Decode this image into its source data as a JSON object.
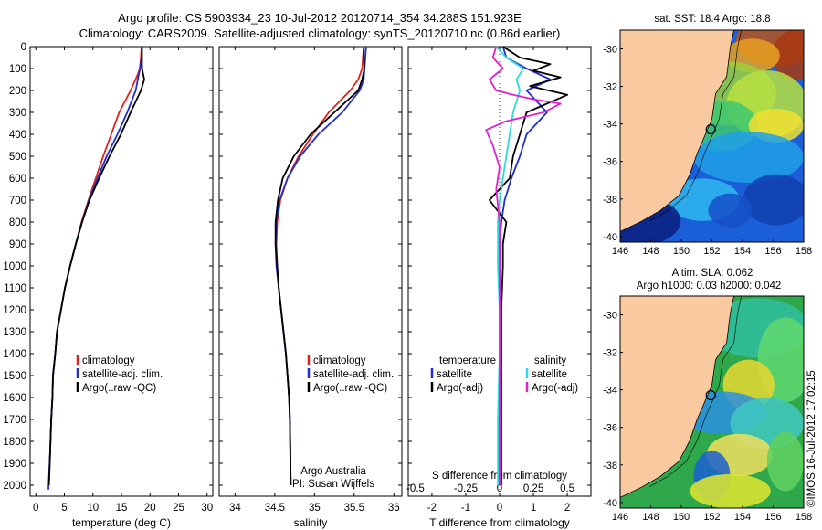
{
  "title_line1": "Argo profile: CS 5903934_23 10-Jul-2012 20120714_354 34.288S 151.923E",
  "title_line2": "Climatology: CARS2009. Satellite-adjusted climatology: synTS_20120710.nc (0.86d earlier)",
  "stamp": "©IMOS 16-Jul-2012 17:02:15",
  "colors": {
    "climatology": "#e0201a",
    "satellite": "#1f2fd0",
    "argo": "#000000",
    "sal_satellite": "#30d8e0",
    "sal_argo": "#e020d0",
    "land": "#f9c9a0"
  },
  "chart_data": [
    {
      "type": "line",
      "xlabel": "temperature (deg C)",
      "xlim": [
        -1,
        31
      ],
      "xticks": [
        0,
        5,
        10,
        15,
        20,
        25,
        30
      ],
      "ylim": [
        0,
        2050
      ],
      "yticks": [
        0,
        100,
        200,
        300,
        400,
        500,
        600,
        700,
        800,
        900,
        1000,
        1100,
        1200,
        1300,
        1400,
        1500,
        1600,
        1700,
        1800,
        1900,
        2000
      ],
      "legend": [
        "climatology",
        "satellite-adj. clim.",
        "Argo(..raw -QC)"
      ],
      "series": [
        {
          "name": "climatology",
          "color": "#e0201a",
          "x": [
            18.5,
            18.4,
            18.2,
            17.8,
            16.6,
            14.6,
            13.2,
            11.8,
            10.5,
            9.2,
            8.0,
            7.0,
            6.0,
            5.1,
            4.4,
            3.7,
            3.4,
            3.0,
            2.9,
            2.7,
            2.5,
            2.3
          ],
          "y": [
            0,
            50,
            100,
            130,
            200,
            300,
            400,
            500,
            600,
            700,
            800,
            900,
            1000,
            1100,
            1200,
            1300,
            1400,
            1500,
            1600,
            1700,
            1850,
            2000
          ]
        },
        {
          "name": "satellite-adj. clim.",
          "color": "#1f2fd0",
          "x": [
            18.6,
            18.5,
            18.3,
            18.0,
            17.5,
            16.0,
            14.3,
            12.4,
            10.8,
            9.3,
            8.1,
            7.0,
            6.0,
            5.1,
            4.4,
            3.7,
            3.4,
            3.0,
            2.9,
            2.7,
            2.5,
            2.2
          ],
          "y": [
            0,
            50,
            100,
            130,
            200,
            300,
            400,
            500,
            600,
            700,
            800,
            900,
            1000,
            1100,
            1200,
            1300,
            1400,
            1500,
            1600,
            1700,
            1850,
            2020
          ]
        },
        {
          "name": "Argo(..raw -QC)",
          "color": "#000000",
          "x": [
            18.6,
            18.6,
            18.6,
            19.0,
            18.4,
            16.6,
            14.9,
            12.9,
            11.1,
            9.4,
            8.1,
            7.0,
            6.0,
            5.1,
            4.4,
            3.7,
            3.4,
            3.0,
            2.9,
            2.7,
            2.5,
            2.3
          ],
          "y": [
            10,
            50,
            100,
            150,
            200,
            300,
            400,
            500,
            600,
            700,
            800,
            900,
            1000,
            1100,
            1200,
            1300,
            1400,
            1500,
            1600,
            1700,
            1850,
            2000
          ]
        }
      ]
    },
    {
      "type": "line",
      "xlabel": "salinity",
      "xlim": [
        33.8,
        36.1
      ],
      "xticks": [
        34,
        34.5,
        35,
        35.5,
        36
      ],
      "ylim": [
        0,
        2050
      ],
      "legend": [
        "climatology",
        "satellite-adj. clim.",
        "Argo(..raw -QC)"
      ],
      "annotation": [
        "Argo Australia",
        "PI: Susan Wijffels"
      ],
      "series": [
        {
          "name": "climatology",
          "color": "#e0201a",
          "x": [
            35.62,
            35.61,
            35.6,
            35.55,
            35.45,
            35.18,
            34.98,
            34.8,
            34.66,
            34.57,
            34.53,
            34.52,
            34.53,
            34.55,
            34.58,
            34.61,
            34.64,
            34.66,
            34.68,
            34.69,
            34.7
          ],
          "y": [
            0,
            50,
            100,
            150,
            200,
            300,
            400,
            500,
            600,
            700,
            800,
            900,
            1000,
            1100,
            1200,
            1300,
            1400,
            1500,
            1600,
            1700,
            2000
          ]
        },
        {
          "name": "satellite-adj. clim.",
          "color": "#1f2fd0",
          "x": [
            35.65,
            35.64,
            35.63,
            35.62,
            35.57,
            35.35,
            35.05,
            34.82,
            34.66,
            34.56,
            34.52,
            34.51,
            34.52,
            34.55,
            34.58,
            34.61,
            34.64,
            34.66,
            34.68,
            34.69,
            34.7
          ],
          "y": [
            0,
            50,
            100,
            150,
            200,
            300,
            400,
            500,
            600,
            700,
            800,
            900,
            1000,
            1100,
            1200,
            1300,
            1400,
            1500,
            1600,
            1700,
            2000
          ]
        },
        {
          "name": "Argo(..raw -QC)",
          "color": "#000000",
          "x": [
            35.62,
            35.62,
            35.63,
            35.6,
            35.55,
            35.25,
            34.95,
            34.74,
            34.6,
            34.54,
            34.51,
            34.51,
            34.53,
            34.55,
            34.58,
            34.61,
            34.64,
            34.66,
            34.68,
            34.69,
            34.7
          ],
          "y": [
            10,
            50,
            100,
            150,
            200,
            300,
            400,
            500,
            600,
            700,
            800,
            900,
            1000,
            1100,
            1200,
            1300,
            1400,
            1500,
            1600,
            1700,
            2000
          ]
        }
      ]
    },
    {
      "type": "line",
      "xlabel": "T difference from climatology",
      "xlabel_top": "S difference from climatology",
      "xlim": [
        -2.7,
        2.7
      ],
      "xticks": [
        -2,
        -1,
        0,
        1,
        2
      ],
      "xticks_top": [
        "-0.5",
        "-0.25",
        "0",
        "0.25",
        "0.5"
      ],
      "ylim": [
        0,
        2050
      ],
      "legend": [
        "temperature",
        "satellite",
        "Argo(-adj)",
        "salinity",
        "satellite",
        "Argo(-adj)"
      ],
      "series": [
        {
          "name": "temperature satellite",
          "color": "#1f2fd0",
          "x": [
            0.1,
            0.2,
            0.8,
            1.5,
            0.8,
            1.4,
            0.8,
            0.6,
            0.35,
            0.15,
            0.05,
            0,
            0,
            0,
            0,
            0,
            0,
            0
          ],
          "y": [
            0,
            50,
            100,
            150,
            200,
            300,
            400,
            500,
            600,
            700,
            800,
            900,
            1000,
            1200,
            1400,
            1600,
            1800,
            2000
          ]
        },
        {
          "name": "temperature Argo(-adj)",
          "color": "#000000",
          "x": [
            0.1,
            0.6,
            1.5,
            1.0,
            1.8,
            0.9,
            2.0,
            0.8,
            0.6,
            0.4,
            0.3,
            -0.3,
            0.2,
            0.1,
            0.1,
            0.05,
            0.05,
            0.05
          ],
          "y": [
            0,
            50,
            80,
            110,
            140,
            180,
            220,
            300,
            400,
            500,
            600,
            700,
            800,
            900,
            1000,
            1200,
            1600,
            2000
          ]
        },
        {
          "name": "salinity satellite",
          "color": "#30d8e0",
          "x": [
            -0.1,
            0.2,
            0.7,
            0.5,
            0.6,
            0.4,
            0.3,
            0.2,
            0.1,
            0,
            -0.05,
            -0.05,
            0,
            0,
            -0.05,
            -0.05
          ],
          "y": [
            0,
            50,
            100,
            150,
            200,
            300,
            400,
            500,
            600,
            700,
            800,
            1000,
            1200,
            1400,
            1700,
            2000
          ]
        },
        {
          "name": "salinity Argo(-adj)",
          "color": "#e020d0",
          "x": [
            -0.1,
            -0.2,
            0.1,
            -0.3,
            -0.1,
            0.4,
            1.0,
            1.8,
            1.3,
            0.2,
            -0.4,
            -0.2,
            0,
            -0.1,
            0,
            0,
            0,
            0,
            0
          ],
          "y": [
            0,
            50,
            100,
            150,
            200,
            220,
            240,
            260,
            300,
            340,
            380,
            450,
            550,
            650,
            800,
            1000,
            1200,
            1600,
            2000
          ]
        }
      ]
    }
  ],
  "maps": [
    {
      "title": "sat. SST: 18.4 Argo: 18.8",
      "yticks": [
        "-30",
        "-32",
        "-34",
        "-36",
        "-38",
        "-40"
      ],
      "xticks": [
        "146",
        "148",
        "150",
        "152",
        "154",
        "156",
        "158"
      ]
    },
    {
      "title_line1": "Altim. SLA: 0.062",
      "title_line2": "Argo h1000: 0.03 h2000: 0.042",
      "yticks": [
        "-30",
        "-32",
        "-34",
        "-36",
        "-38",
        "-40"
      ],
      "xticks": [
        "146",
        "148",
        "150",
        "152",
        "154",
        "156",
        "158"
      ]
    }
  ]
}
